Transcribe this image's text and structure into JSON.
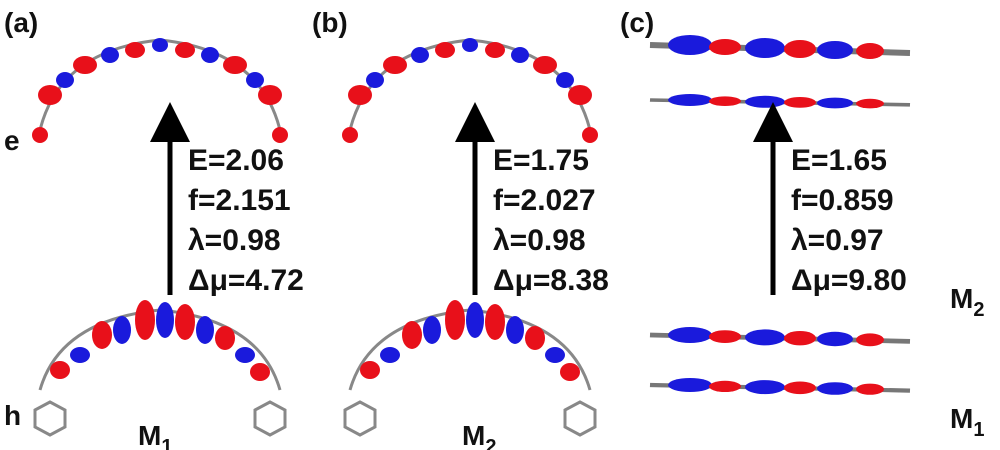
{
  "panels": [
    {
      "label": "(a)",
      "energy": "E=2.06",
      "oscillator": "f=2.151",
      "overlap": "λ=0.98",
      "dipole": "Δμ=4.72",
      "molecule": {
        "name": "M",
        "subscript": "1"
      }
    },
    {
      "label": "(b)",
      "energy": "E=1.75",
      "oscillator": "f=2.027",
      "overlap": "λ=0.98",
      "dipole": "Δμ=8.38",
      "molecule": {
        "name": "M",
        "subscript": "2"
      }
    },
    {
      "label": "(c)",
      "energy": "E=1.65",
      "oscillator": "f=0.859",
      "overlap": "λ=0.97",
      "dipole": "Δμ=9.80",
      "stack": [
        {
          "name": "M",
          "subscript": "2"
        },
        {
          "name": "M",
          "subscript": "1"
        }
      ]
    }
  ],
  "state_labels": {
    "excited": "e",
    "hole": "h"
  }
}
